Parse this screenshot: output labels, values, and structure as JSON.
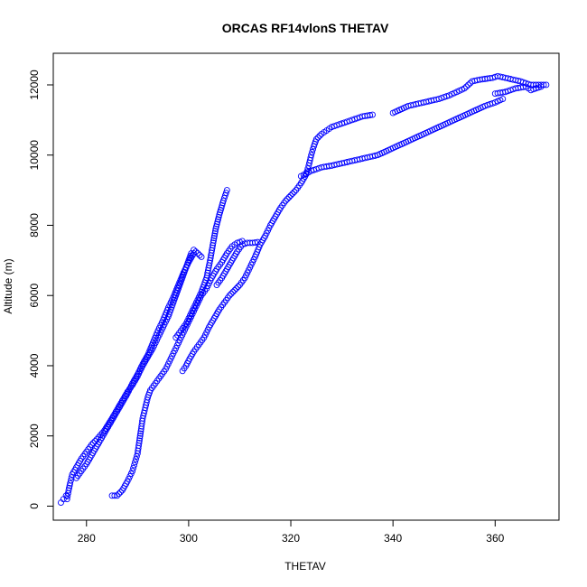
{
  "chart_data": {
    "type": "scatter",
    "title": "ORCAS RF14vlonS THETAV",
    "xlabel": "THETAV",
    "ylabel": "Altitude (m)",
    "xlim": [
      273.5,
      372.5
    ],
    "ylim": [
      -400,
      12900
    ],
    "xticks": [
      280,
      300,
      320,
      340,
      360
    ],
    "yticks": [
      0,
      2000,
      4000,
      6000,
      8000,
      10000,
      12000
    ],
    "grid": false,
    "marker": "open-circle",
    "series_color": "#0000ff",
    "series": [
      {
        "segments": [
          {
            "connected": false,
            "points": [
              [
                275,
                100
              ],
              [
                275.5,
                200
              ],
              [
                276,
                300
              ],
              [
                276.2,
                200
              ],
              [
                276.5,
                450
              ],
              [
                276.8,
                650
              ],
              [
                277.2,
                900
              ],
              [
                278,
                1100
              ],
              [
                279,
                1350
              ],
              [
                280,
                1550
              ],
              [
                281,
                1750
              ],
              [
                282,
                1900
              ],
              [
                283.5,
                2150
              ],
              [
                285,
                2500
              ],
              [
                286,
                2750
              ],
              [
                287,
                3000
              ],
              [
                288,
                3250
              ],
              [
                289,
                3450
              ],
              [
                290,
                3700
              ],
              [
                291,
                4000
              ],
              [
                292,
                4250
              ],
              [
                293,
                4500
              ],
              [
                294,
                4800
              ],
              [
                295,
                5100
              ],
              [
                296,
                5400
              ],
              [
                296.5,
                5600
              ],
              [
                297,
                5800
              ],
              [
                297.5,
                6000
              ],
              [
                298,
                6200
              ],
              [
                298.5,
                6400
              ],
              [
                299,
                6600
              ],
              [
                299.5,
                6800
              ],
              [
                300,
                7000
              ],
              [
                300.5,
                7200
              ],
              [
                301,
                7300
              ],
              [
                301.8,
                7200
              ],
              [
                302.5,
                7100
              ]
            ]
          },
          {
            "connected": false,
            "points": [
              [
                278,
                800
              ],
              [
                279,
                1000
              ],
              [
                280,
                1200
              ],
              [
                281,
                1450
              ],
              [
                282,
                1700
              ],
              [
                283,
                1950
              ],
              [
                284,
                2200
              ],
              [
                285,
                2450
              ],
              [
                286,
                2700
              ],
              [
                287,
                2950
              ],
              [
                288,
                3200
              ],
              [
                289,
                3500
              ],
              [
                290,
                3750
              ],
              [
                291,
                4050
              ],
              [
                292,
                4300
              ],
              [
                293,
                4650
              ],
              [
                294,
                5000
              ],
              [
                295,
                5300
              ],
              [
                296,
                5650
              ],
              [
                297,
                5950
              ],
              [
                298,
                6300
              ],
              [
                299,
                6650
              ],
              [
                300,
                6950
              ],
              [
                301,
                7200
              ]
            ]
          },
          {
            "connected": false,
            "points": [
              [
                285,
                300
              ],
              [
                286,
                300
              ],
              [
                287,
                450
              ],
              [
                288,
                700
              ],
              [
                289,
                1000
              ],
              [
                289.5,
                1250
              ],
              [
                290,
                1500
              ],
              [
                290.3,
                1800
              ],
              [
                290.7,
                2200
              ],
              [
                291,
                2500
              ],
              [
                291.5,
                2800
              ],
              [
                292,
                3100
              ],
              [
                292.5,
                3300
              ],
              [
                293.5,
                3500
              ],
              [
                294.5,
                3700
              ],
              [
                295.5,
                3900
              ],
              [
                296.5,
                4200
              ],
              [
                297.5,
                4500
              ],
              [
                298.5,
                4800
              ],
              [
                299.5,
                5100
              ],
              [
                300.5,
                5400
              ],
              [
                301.5,
                5700
              ],
              [
                302.5,
                6000
              ],
              [
                303.5,
                6200
              ],
              [
                304.5,
                6500
              ],
              [
                305.5,
                6750
              ],
              [
                306.5,
                6950
              ],
              [
                307.5,
                7200
              ],
              [
                308.5,
                7400
              ],
              [
                309.5,
                7500
              ],
              [
                310.5,
                7550
              ]
            ]
          },
          {
            "connected": false,
            "points": [
              [
                298.8,
                3850
              ],
              [
                299.5,
                4000
              ],
              [
                300.2,
                4200
              ],
              [
                301,
                4400
              ],
              [
                302,
                4600
              ],
              [
                303,
                4800
              ],
              [
                304,
                5100
              ],
              [
                305,
                5350
              ],
              [
                306,
                5600
              ],
              [
                307,
                5800
              ],
              [
                308,
                6000
              ],
              [
                309,
                6150
              ],
              [
                310,
                6300
              ],
              [
                311,
                6500
              ],
              [
                312,
                6800
              ],
              [
                313,
                7100
              ],
              [
                314,
                7450
              ],
              [
                315,
                7700
              ],
              [
                316,
                8000
              ],
              [
                317,
                8250
              ],
              [
                318,
                8500
              ],
              [
                319,
                8700
              ],
              [
                320,
                8850
              ],
              [
                321,
                9000
              ],
              [
                322,
                9200
              ],
              [
                323,
                9450
              ],
              [
                323.5,
                9700
              ],
              [
                324,
                10000
              ],
              [
                324.5,
                10250
              ],
              [
                325,
                10450
              ],
              [
                326,
                10600
              ],
              [
                327,
                10700
              ],
              [
                328,
                10800
              ],
              [
                330,
                10900
              ],
              [
                332,
                11000
              ],
              [
                334,
                11100
              ],
              [
                336,
                11150
              ]
            ]
          },
          {
            "connected": false,
            "points": [
              [
                305.5,
                6300
              ],
              [
                306.5,
                6500
              ],
              [
                307.5,
                6750
              ],
              [
                308.5,
                7000
              ],
              [
                309.5,
                7250
              ],
              [
                310.5,
                7450
              ],
              [
                311.5,
                7500
              ],
              [
                312.5,
                7500
              ],
              [
                313.5,
                7520
              ]
            ]
          },
          {
            "connected": false,
            "points": [
              [
                297.5,
                4800
              ],
              [
                298.5,
                5000
              ],
              [
                299.5,
                5200
              ],
              [
                300.5,
                5500
              ],
              [
                301.5,
                5800
              ],
              [
                302.5,
                6100
              ],
              [
                303.5,
                6500
              ],
              [
                304.2,
                7000
              ],
              [
                304.8,
                7500
              ],
              [
                305.3,
                7900
              ],
              [
                306,
                8300
              ],
              [
                306.8,
                8700
              ],
              [
                307.5,
                9000
              ]
            ]
          },
          {
            "connected": false,
            "points": [
              [
                340,
                11200
              ],
              [
                343,
                11400
              ],
              [
                346,
                11500
              ],
              [
                349,
                11600
              ],
              [
                351,
                11700
              ],
              [
                352.5,
                11800
              ],
              [
                354,
                11900
              ],
              [
                355.5,
                12100
              ],
              [
                357,
                12150
              ],
              [
                359.5,
                12200
              ],
              [
                360.5,
                12250
              ],
              [
                362,
                12200
              ],
              [
                363.5,
                12150
              ],
              [
                365,
                12100
              ],
              [
                366,
                12050
              ],
              [
                367,
                12000
              ],
              [
                368,
                12000
              ],
              [
                369,
                12000
              ],
              [
                370,
                12000
              ]
            ]
          },
          {
            "connected": false,
            "points": [
              [
                360,
                11750
              ],
              [
                362,
                11800
              ],
              [
                364,
                11900
              ],
              [
                366,
                11950
              ],
              [
                367,
                11850
              ],
              [
                368,
                11900
              ],
              [
                369,
                11950
              ]
            ]
          },
          {
            "connected": false,
            "points": [
              [
                322,
                9400
              ],
              [
                324,
                9550
              ],
              [
                326,
                9650
              ],
              [
                328,
                9700
              ],
              [
                331,
                9800
              ],
              [
                334,
                9900
              ],
              [
                337,
                10000
              ],
              [
                340,
                10200
              ],
              [
                343,
                10400
              ],
              [
                346,
                10600
              ],
              [
                349,
                10800
              ],
              [
                352,
                11000
              ],
              [
                355,
                11200
              ],
              [
                358,
                11400
              ],
              [
                360,
                11500
              ],
              [
                361.5,
                11600
              ]
            ]
          }
        ]
      }
    ]
  }
}
